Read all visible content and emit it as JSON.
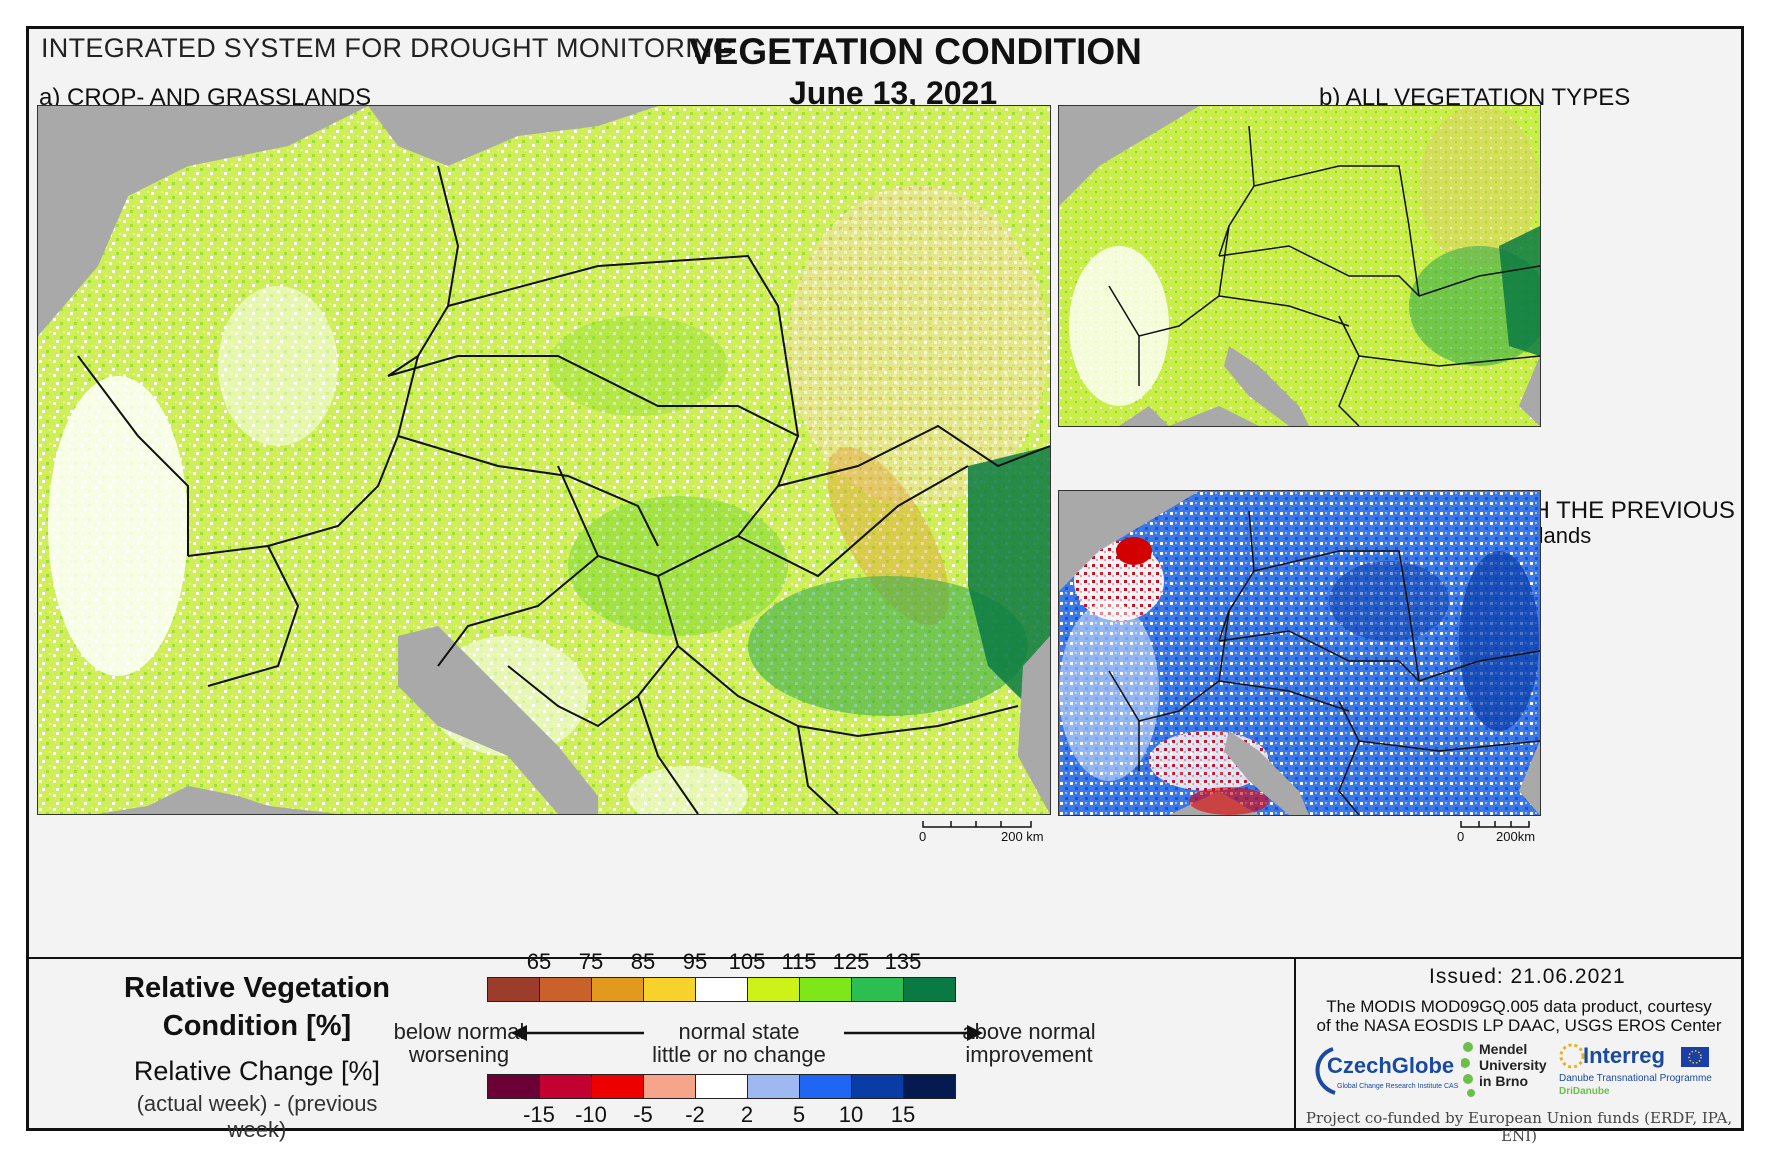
{
  "header": {
    "system_title": "INTEGRATED SYSTEM FOR DROUGHT MONITORING",
    "title": "VEGETATION CONDITION",
    "date": "June 13, 2021"
  },
  "panels": {
    "a_label": "a) CROP- AND GRASSLANDS",
    "b_label": "b) ALL VEGETATION TYPES",
    "c_label": "c) CHANGE COMPARED WITH THE PREVIOUS WEEK",
    "c_sublabel": "for crop- and grasslands"
  },
  "scalebars": {
    "a": {
      "start": "0",
      "end": "200 km"
    },
    "bc": {
      "start": "0",
      "end": "200km"
    }
  },
  "legend": {
    "rvc_title_1": "Relative Vegetation",
    "rvc_title_2": "Condition [%]",
    "rc_title": "Relative Change [%]",
    "rc_sub": "(actual week) - (previous week)",
    "rvc_colors": [
      "#9b3d2a",
      "#c9612a",
      "#e29a1e",
      "#f6d22b",
      "#ffffff",
      "#ccf21a",
      "#7ee619",
      "#2cbe50",
      "#0a7a44"
    ],
    "rvc_ticks": [
      "65",
      "75",
      "85",
      "95",
      "105",
      "115",
      "125",
      "135"
    ],
    "rc_colors": [
      "#6b0036",
      "#c30030",
      "#ee0000",
      "#f7a58a",
      "#ffffff",
      "#9fb8f2",
      "#1f66f2",
      "#0a3ca6",
      "#061a52"
    ],
    "rc_ticks": [
      "-15",
      "-10",
      "-5",
      "-2",
      "2",
      "5",
      "10",
      "15"
    ],
    "below_1": "below normal",
    "below_2": "worsening",
    "normal_1": "normal state",
    "normal_2": "little or no change",
    "above_1": "above normal",
    "above_2": "improvement"
  },
  "footer": {
    "issued": "Issued: 21.06.2021",
    "credit_1": "The MODIS MOD09GQ.005 data product, courtesy",
    "credit_2": "of the NASA EOSDIS LP DAAC, USGS EROS Center",
    "logo_czechglobe": "CzechGlobe",
    "logo_czechglobe_sub": "Global Change Research Institute CAS",
    "logo_mendel_1": "Mendel",
    "logo_mendel_2": "University",
    "logo_mendel_3": "in Brno",
    "logo_interreg": "Interreg",
    "logo_interreg_sub": "Danube Transnational Programme",
    "logo_interreg_sub2": "DriDanube",
    "funded": "Project co-funded by European Union funds (ERDF, IPA, ENI)"
  },
  "colors": {
    "sea": "#a9a9a9",
    "land_bg": "#d8f07a"
  }
}
